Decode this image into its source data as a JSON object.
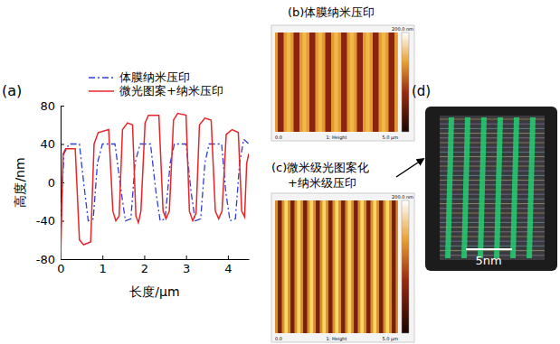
{
  "chart_data": {
    "type": "line",
    "title": "(a)",
    "x_label": "长度/μm",
    "y_label": "高度/nm",
    "xlim": [
      0,
      4.5
    ],
    "ylim": [
      -80,
      80
    ],
    "xticks": [
      0,
      1,
      2,
      3,
      4
    ],
    "yticks": [
      -80,
      -40,
      0,
      40,
      80
    ],
    "grid": false,
    "legend": "top",
    "series": [
      {
        "name": "体膜纳米压印",
        "color": "#2f3fd8",
        "line_style": "dashdot",
        "x": [
          0,
          0.08,
          0.2,
          0.45,
          0.55,
          0.66,
          0.78,
          0.88,
          1.0,
          1.3,
          1.45,
          1.55,
          1.68,
          1.78,
          1.9,
          2.15,
          2.28,
          2.38,
          2.5,
          2.62,
          2.72,
          3.0,
          3.12,
          3.22,
          3.35,
          3.45,
          3.55,
          3.85,
          3.95,
          4.05,
          4.18,
          4.28,
          4.38,
          4.5
        ],
        "values": [
          -42,
          30,
          40,
          40,
          0,
          -40,
          -38,
          20,
          40,
          40,
          -10,
          -40,
          -38,
          20,
          40,
          40,
          -10,
          -40,
          -38,
          20,
          40,
          40,
          -10,
          -40,
          -38,
          20,
          40,
          40,
          -10,
          -40,
          -38,
          20,
          45,
          40
        ]
      },
      {
        "name": "微光图案+纳米压印",
        "color": "#e8262a",
        "line_style": "solid",
        "x": [
          0,
          0.06,
          0.12,
          0.35,
          0.45,
          0.55,
          0.72,
          0.8,
          0.9,
          1.15,
          1.25,
          1.32,
          1.4,
          1.48,
          1.6,
          1.72,
          1.8,
          1.86,
          1.92,
          2.02,
          2.1,
          2.35,
          2.45,
          2.52,
          2.6,
          2.7,
          2.8,
          3.0,
          3.08,
          3.16,
          3.24,
          3.32,
          3.45,
          3.6,
          3.7,
          3.78,
          3.86,
          3.96,
          4.1,
          4.25,
          4.33,
          4.4,
          4.45,
          4.5
        ],
        "values": [
          -80,
          30,
          35,
          35,
          -60,
          -65,
          -62,
          40,
          52,
          55,
          -30,
          -40,
          -35,
          55,
          62,
          60,
          -35,
          -42,
          -30,
          62,
          70,
          70,
          -30,
          -38,
          -30,
          65,
          72,
          70,
          -30,
          -40,
          -32,
          60,
          67,
          65,
          -30,
          -38,
          -30,
          50,
          55,
          52,
          -30,
          -36,
          20,
          30
        ]
      }
    ]
  },
  "panels": {
    "b": {
      "label": "(b)体膜纳米压印",
      "scale_max": "200.0 nm",
      "axis_start": "0.0",
      "channel": "1: Height",
      "axis_end": "5.0 μm"
    },
    "c": {
      "label_lines": [
        "(c)微米级光图案化",
        "+纳米级压印"
      ],
      "scale_max": "200.0 nm",
      "axis_start": "0.0",
      "channel": "1: Height",
      "axis_end": "5.0 μm"
    },
    "d": {
      "label": "(d)",
      "scale_bar": "5nm"
    }
  }
}
